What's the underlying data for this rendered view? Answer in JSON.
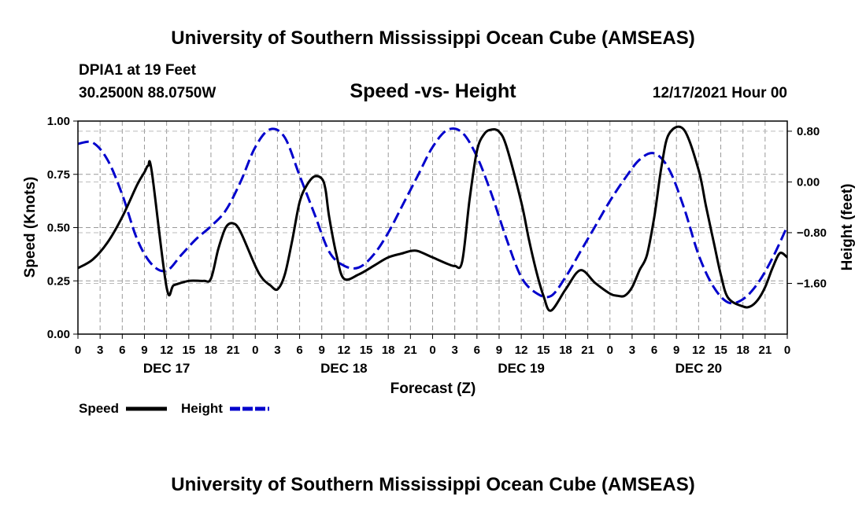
{
  "header": {
    "title": "University of Southern Mississippi Ocean Cube (AMSEAS)",
    "station": "DPIA1 at 19 Feet",
    "coords": "30.2500N  88.0750W",
    "subtitle": "Speed -vs- Height",
    "date": "12/17/2021 Hour 00"
  },
  "footer": {
    "title": "University of Southern Mississippi Ocean Cube (AMSEAS)"
  },
  "chart_data": {
    "type": "line",
    "xlabel": "Forecast (Z)",
    "ylabel": "Speed (Knots)",
    "y2label": "Height (feet)",
    "xlim": [
      0,
      96
    ],
    "ylim": [
      0,
      1.0
    ],
    "y2lim": [
      -2.4,
      0.96
    ],
    "grid": true,
    "x_ticks": [
      0,
      3,
      6,
      9,
      12,
      15,
      18,
      21,
      24,
      27,
      30,
      33,
      36,
      39,
      42,
      45,
      48,
      51,
      54,
      57,
      60,
      63,
      66,
      69,
      72,
      75,
      78,
      81,
      84,
      87,
      90,
      93,
      96
    ],
    "x_tick_labels": [
      "0",
      "3",
      "6",
      "9",
      "12",
      "15",
      "18",
      "21",
      "0",
      "3",
      "6",
      "9",
      "12",
      "15",
      "18",
      "21",
      "0",
      "3",
      "6",
      "9",
      "12",
      "15",
      "18",
      "21",
      "0",
      "3",
      "6",
      "9",
      "12",
      "15",
      "18",
      "21",
      "0"
    ],
    "day_labels": [
      {
        "label": "DEC 17",
        "x": 12
      },
      {
        "label": "DEC 18",
        "x": 36
      },
      {
        "label": "DEC 19",
        "x": 60
      },
      {
        "label": "DEC 20",
        "x": 84
      }
    ],
    "y_ticks": [
      0.0,
      0.25,
      0.5,
      0.75,
      1.0
    ],
    "y_tick_labels": [
      "0.00",
      "0.25",
      "0.50",
      "0.75",
      "1.00"
    ],
    "y2_ticks": [
      -1.6,
      -0.8,
      0.0,
      0.8
    ],
    "y2_tick_labels": [
      "−1.60",
      "−0.80",
      "0.00",
      "0.80"
    ],
    "legend": {
      "position": "bottom-left",
      "entries": [
        {
          "label": "Speed",
          "color": "#000000",
          "dash": "solid"
        },
        {
          "label": "Height",
          "color": "#0000cc",
          "dash": "dashed"
        }
      ]
    },
    "series": [
      {
        "name": "Speed",
        "axis": "left",
        "color": "#000000",
        "x": [
          0,
          2,
          4,
          6,
          8,
          9,
          9.5,
          10,
          12,
          13,
          15,
          17,
          18,
          19,
          20,
          21,
          22,
          24,
          25,
          26,
          27,
          28,
          29,
          30,
          31,
          32,
          33,
          33.5,
          34,
          35,
          36,
          38,
          40,
          42,
          44,
          45,
          46,
          48,
          50,
          51,
          52,
          53,
          54,
          55,
          56,
          57,
          58,
          60,
          61,
          62,
          63,
          64,
          66,
          68,
          70,
          72,
          73,
          74,
          75,
          76,
          77,
          78,
          79,
          80,
          82,
          84,
          85,
          86,
          87,
          88,
          90,
          91,
          92,
          93,
          94,
          95,
          96
        ],
        "y": [
          0.31,
          0.35,
          0.43,
          0.55,
          0.7,
          0.76,
          0.79,
          0.76,
          0.22,
          0.23,
          0.25,
          0.25,
          0.26,
          0.4,
          0.5,
          0.52,
          0.48,
          0.32,
          0.26,
          0.23,
          0.21,
          0.28,
          0.44,
          0.62,
          0.7,
          0.74,
          0.73,
          0.68,
          0.55,
          0.37,
          0.26,
          0.28,
          0.32,
          0.36,
          0.38,
          0.39,
          0.39,
          0.36,
          0.33,
          0.32,
          0.34,
          0.63,
          0.86,
          0.94,
          0.96,
          0.95,
          0.88,
          0.62,
          0.45,
          0.3,
          0.18,
          0.11,
          0.21,
          0.3,
          0.24,
          0.19,
          0.18,
          0.18,
          0.22,
          0.3,
          0.37,
          0.55,
          0.79,
          0.94,
          0.96,
          0.77,
          0.6,
          0.44,
          0.28,
          0.17,
          0.13,
          0.13,
          0.16,
          0.22,
          0.31,
          0.38,
          0.36
        ]
      },
      {
        "name": "Height",
        "axis": "right",
        "color": "#0000cc",
        "x": [
          0,
          2,
          4,
          6,
          8,
          10,
          12,
          14,
          16,
          18,
          20,
          22,
          24,
          26,
          28,
          30,
          32,
          34,
          36,
          38,
          40,
          42,
          44,
          46,
          48,
          50,
          52,
          54,
          56,
          58,
          60,
          62,
          64,
          66,
          68,
          70,
          72,
          74,
          76,
          78,
          80,
          82,
          84,
          86,
          88,
          90,
          92,
          94,
          96
        ],
        "y": [
          0.6,
          0.62,
          0.35,
          -0.2,
          -0.9,
          -1.3,
          -1.4,
          -1.15,
          -0.9,
          -0.7,
          -0.45,
          0.0,
          0.55,
          0.83,
          0.7,
          0.1,
          -0.5,
          -1.1,
          -1.32,
          -1.35,
          -1.15,
          -0.8,
          -0.35,
          0.1,
          0.55,
          0.82,
          0.78,
          0.4,
          -0.2,
          -0.9,
          -1.5,
          -1.75,
          -1.8,
          -1.5,
          -1.1,
          -0.7,
          -0.3,
          0.05,
          0.35,
          0.45,
          0.2,
          -0.4,
          -1.15,
          -1.65,
          -1.9,
          -1.85,
          -1.6,
          -1.2,
          -0.7
        ]
      }
    ]
  }
}
